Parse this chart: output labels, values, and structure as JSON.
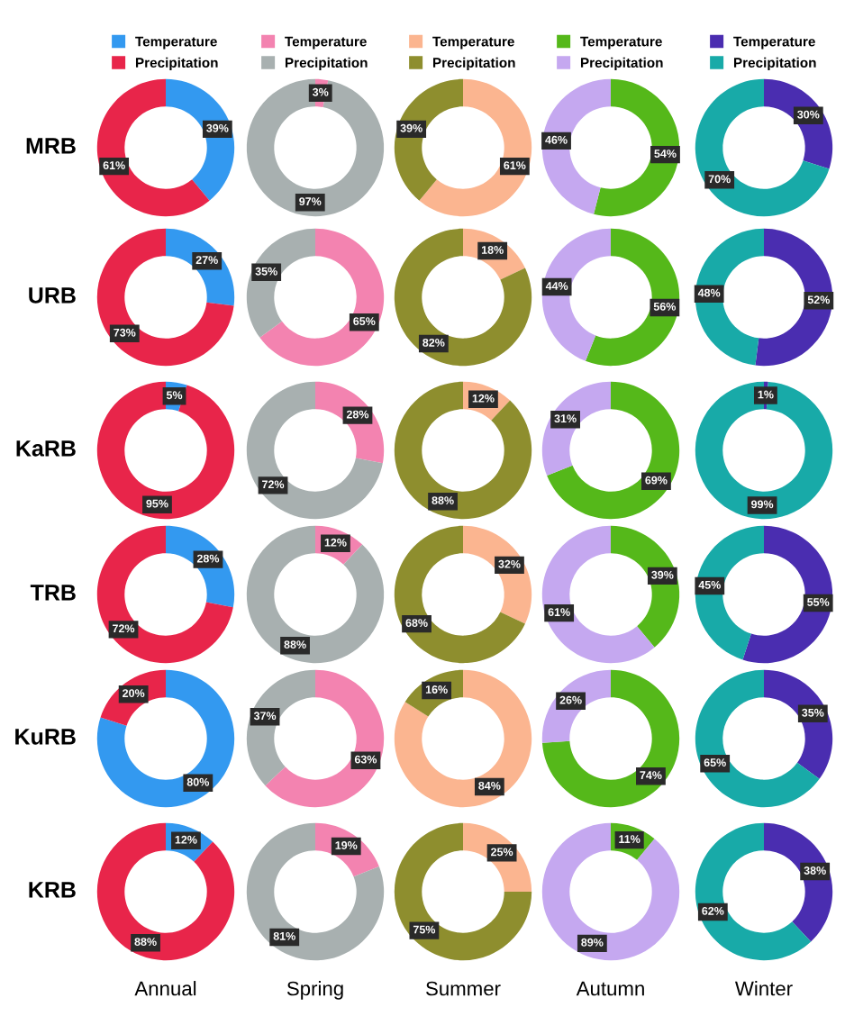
{
  "chart_data": [
    {
      "type": "donut",
      "ylabel": "MRB",
      "legend": "top",
      "categories": [
        "Temperature",
        "Precipitation"
      ],
      "values": [
        39,
        61
      ],
      "colors": [
        "#3399f0",
        "#e8254a"
      ],
      "value_labels": [
        "39%",
        "61%"
      ]
    },
    {
      "type": "donut",
      "legend": "top",
      "categories": [
        "Temperature",
        "Precipitation"
      ],
      "values": [
        3,
        97
      ],
      "colors": [
        "#f383b0",
        "#a8b0b0"
      ],
      "value_labels": [
        "3%",
        "97%"
      ]
    },
    {
      "type": "donut",
      "legend": "top",
      "categories": [
        "Temperature",
        "Precipitation"
      ],
      "values": [
        61,
        39
      ],
      "colors": [
        "#fbb590",
        "#8e8e2e"
      ],
      "value_labels": [
        "61%",
        "39%"
      ]
    },
    {
      "type": "donut",
      "legend": "top",
      "categories": [
        "Temperature",
        "Precipitation"
      ],
      "values": [
        54,
        46
      ],
      "colors": [
        "#55b81a",
        "#c5a8f0"
      ],
      "value_labels": [
        "54%",
        "46%"
      ]
    },
    {
      "type": "donut",
      "legend": "top",
      "categories": [
        "Temperature",
        "Precipitation"
      ],
      "values": [
        30,
        70
      ],
      "colors": [
        "#4a2db0",
        "#18aaa8"
      ],
      "value_labels": [
        "30%",
        "70%"
      ]
    },
    {
      "type": "donut",
      "ylabel": "URB",
      "categories": [
        null,
        null
      ],
      "values": [
        27,
        73
      ],
      "colors": [
        "#3399f0",
        "#e8254a"
      ],
      "value_labels": [
        "27%",
        "73%"
      ]
    },
    {
      "type": "donut",
      "categories": [
        null,
        null
      ],
      "values": [
        65,
        35
      ],
      "colors": [
        "#f383b0",
        "#a8b0b0"
      ],
      "value_labels": [
        "65%",
        "35%"
      ]
    },
    {
      "type": "donut",
      "categories": [
        null,
        null
      ],
      "values": [
        18,
        82
      ],
      "colors": [
        "#fbb590",
        "#8e8e2e"
      ],
      "value_labels": [
        "18%",
        "82%"
      ]
    },
    {
      "type": "donut",
      "categories": [
        null,
        null
      ],
      "values": [
        56,
        44
      ],
      "colors": [
        "#55b81a",
        "#c5a8f0"
      ],
      "value_labels": [
        "56%",
        "44%"
      ]
    },
    {
      "type": "donut",
      "categories": [
        null,
        null
      ],
      "values": [
        52,
        48
      ],
      "colors": [
        "#4a2db0",
        "#18aaa8"
      ],
      "value_labels": [
        "52%",
        "48%"
      ]
    },
    {
      "type": "donut",
      "ylabel": "KaRB",
      "categories": [
        null,
        null
      ],
      "values": [
        5,
        95
      ],
      "colors": [
        "#3399f0",
        "#e8254a"
      ],
      "value_labels": [
        "5%",
        "95%"
      ]
    },
    {
      "type": "donut",
      "categories": [
        null,
        null
      ],
      "values": [
        28,
        72
      ],
      "colors": [
        "#f383b0",
        "#a8b0b0"
      ],
      "value_labels": [
        "28%",
        "72%"
      ]
    },
    {
      "type": "donut",
      "categories": [
        null,
        null
      ],
      "values": [
        12,
        88
      ],
      "colors": [
        "#fbb590",
        "#8e8e2e"
      ],
      "value_labels": [
        "12%",
        "88%"
      ]
    },
    {
      "type": "donut",
      "categories": [
        null,
        null
      ],
      "values": [
        69,
        31
      ],
      "colors": [
        "#55b81a",
        "#c5a8f0"
      ],
      "value_labels": [
        "69%",
        "31%"
      ]
    },
    {
      "type": "donut",
      "categories": [
        null,
        null
      ],
      "values": [
        1,
        99
      ],
      "colors": [
        "#4a2db0",
        "#18aaa8"
      ],
      "value_labels": [
        "1%",
        "99%"
      ]
    },
    {
      "type": "donut",
      "ylabel": "TRB",
      "categories": [
        null,
        null
      ],
      "values": [
        28,
        72
      ],
      "colors": [
        "#3399f0",
        "#e8254a"
      ],
      "value_labels": [
        "28%",
        "72%"
      ]
    },
    {
      "type": "donut",
      "categories": [
        null,
        null
      ],
      "values": [
        12,
        88
      ],
      "colors": [
        "#f383b0",
        "#a8b0b0"
      ],
      "value_labels": [
        "12%",
        "88%"
      ]
    },
    {
      "type": "donut",
      "categories": [
        null,
        null
      ],
      "values": [
        32,
        68
      ],
      "colors": [
        "#fbb590",
        "#8e8e2e"
      ],
      "value_labels": [
        "32%",
        "68%"
      ]
    },
    {
      "type": "donut",
      "categories": [
        null,
        null
      ],
      "values": [
        39,
        61
      ],
      "colors": [
        "#55b81a",
        "#c5a8f0"
      ],
      "value_labels": [
        "39%",
        "61%"
      ]
    },
    {
      "type": "donut",
      "categories": [
        null,
        null
      ],
      "values": [
        55,
        45
      ],
      "colors": [
        "#4a2db0",
        "#18aaa8"
      ],
      "value_labels": [
        "55%",
        "45%"
      ]
    },
    {
      "type": "donut",
      "ylabel": "KuRB",
      "categories": [
        null,
        null
      ],
      "values": [
        80,
        20
      ],
      "colors": [
        "#3399f0",
        "#e8254a"
      ],
      "value_labels": [
        "80%",
        "20%"
      ]
    },
    {
      "type": "donut",
      "categories": [
        null,
        null
      ],
      "values": [
        63,
        37
      ],
      "colors": [
        "#f383b0",
        "#a8b0b0"
      ],
      "value_labels": [
        "63%",
        "37%"
      ]
    },
    {
      "type": "donut",
      "categories": [
        null,
        null
      ],
      "values": [
        84,
        16
      ],
      "colors": [
        "#fbb590",
        "#8e8e2e"
      ],
      "value_labels": [
        "84%",
        "16%"
      ]
    },
    {
      "type": "donut",
      "categories": [
        null,
        null
      ],
      "values": [
        74,
        26
      ],
      "colors": [
        "#55b81a",
        "#c5a8f0"
      ],
      "value_labels": [
        "74%",
        "26%"
      ]
    },
    {
      "type": "donut",
      "categories": [
        null,
        null
      ],
      "values": [
        35,
        65
      ],
      "colors": [
        "#4a2db0",
        "#18aaa8"
      ],
      "value_labels": [
        "35%",
        "65%"
      ]
    },
    {
      "type": "donut",
      "ylabel": "KRB",
      "xlabel": "Annual",
      "categories": [
        null,
        null
      ],
      "values": [
        12,
        88
      ],
      "colors": [
        "#3399f0",
        "#e8254a"
      ],
      "value_labels": [
        "12%",
        "88%"
      ]
    },
    {
      "type": "donut",
      "xlabel": "Spring",
      "categories": [
        null,
        null
      ],
      "values": [
        19,
        81
      ],
      "colors": [
        "#f383b0",
        "#a8b0b0"
      ],
      "value_labels": [
        "19%",
        "81%"
      ]
    },
    {
      "type": "donut",
      "xlabel": "Summer",
      "categories": [
        null,
        null
      ],
      "values": [
        25,
        75
      ],
      "colors": [
        "#fbb590",
        "#8e8e2e"
      ],
      "value_labels": [
        "25%",
        "75%"
      ]
    },
    {
      "type": "donut",
      "xlabel": "Autumn",
      "categories": [
        null,
        null
      ],
      "values": [
        11,
        89
      ],
      "colors": [
        "#55b81a",
        "#c5a8f0"
      ],
      "value_labels": [
        "11%",
        "89%"
      ]
    },
    {
      "type": "donut",
      "xlabel": "Winter",
      "categories": [
        null,
        null
      ],
      "values": [
        38,
        62
      ],
      "colors": [
        "#4a2db0",
        "#18aaa8"
      ],
      "value_labels": [
        "38%",
        "62%"
      ]
    }
  ]
}
